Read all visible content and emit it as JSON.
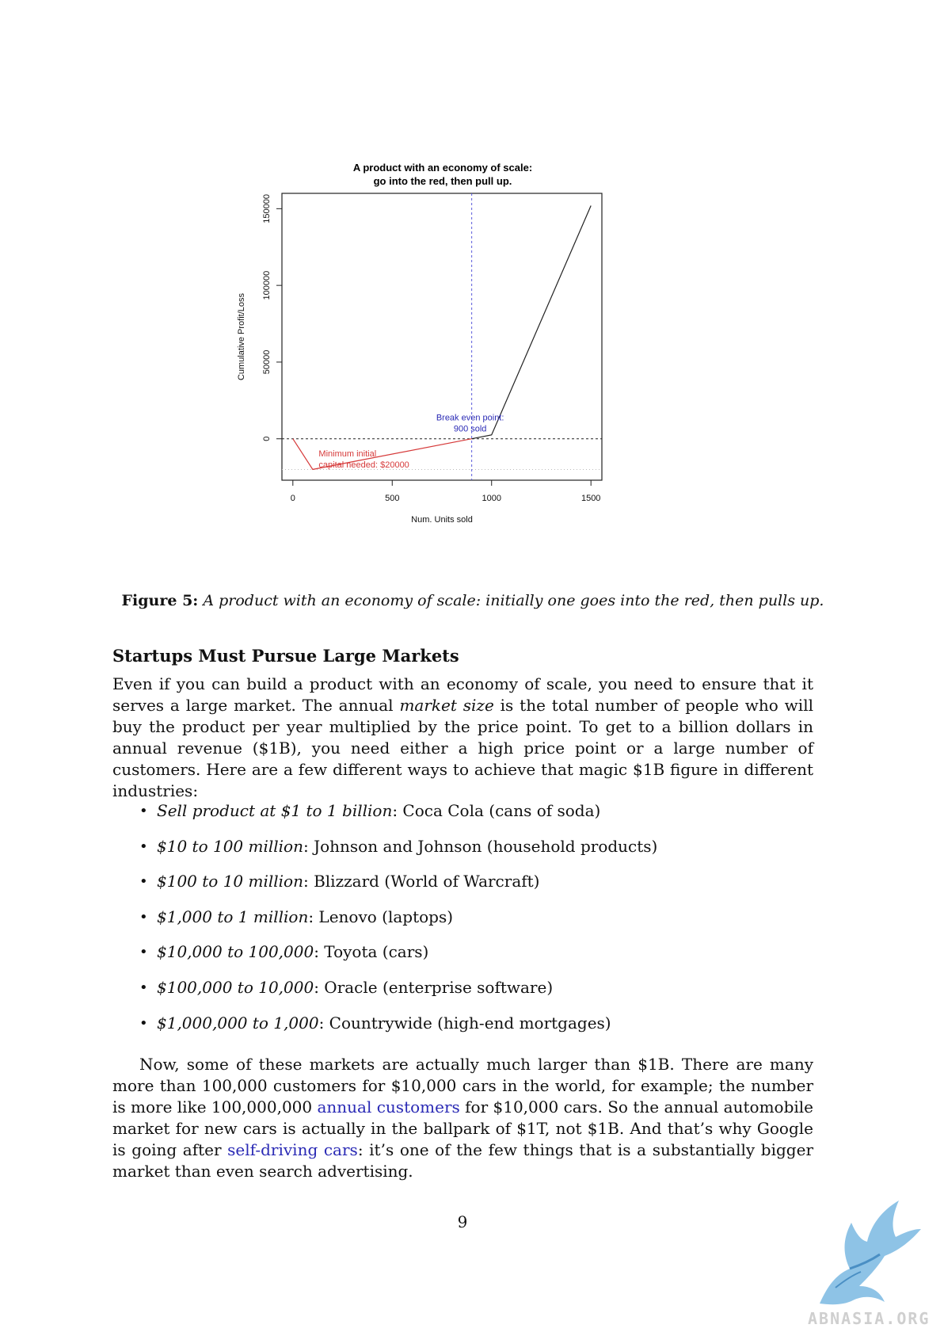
{
  "chart_data": {
    "type": "line",
    "title": "A product with an economy of scale:\ngo into the red, then pull up.",
    "xlabel": "Num. Units sold",
    "ylabel": "Cumulative Profit/Loss",
    "xlim": [
      -55,
      1555
    ],
    "ylim": [
      -27000,
      160000
    ],
    "x_ticks": [
      0,
      500,
      1000,
      1500
    ],
    "y_ticks": [
      0,
      50000,
      100000,
      150000
    ],
    "x_tick_labels": [
      "0",
      "500",
      "1000",
      "1500"
    ],
    "y_tick_labels": [
      "0",
      "50000",
      "100000",
      "150000"
    ],
    "series": [
      {
        "color": "#d63a3a",
        "x": [
          0,
          100,
          900
        ],
        "y": [
          0,
          -20000,
          0
        ]
      },
      {
        "color": "#222222",
        "x": [
          900,
          1000,
          1500
        ],
        "y": [
          0,
          2500,
          152000
        ]
      }
    ],
    "hline": {
      "y": 0,
      "style": "dashed",
      "color": "#222222"
    },
    "hline_min": {
      "y": -20000,
      "style": "dotted",
      "color": "#bbbbbb"
    },
    "vline": {
      "x": 900,
      "style": "dashed",
      "color": "#5b5bdc"
    },
    "annotations": [
      {
        "id": "min-capital",
        "lines": [
          "Minimum initial",
          "capital needed: $20000"
        ],
        "color": "#d63a3a"
      },
      {
        "id": "break-even",
        "lines": [
          "Break even point:",
          "900 sold"
        ],
        "color": "#2a2ab5"
      }
    ]
  },
  "caption": {
    "label": "Figure 5:",
    "text": "A product with an economy of scale: initially one goes into the red, then pulls up."
  },
  "section": {
    "title": "Startups Must Pursue Large Markets"
  },
  "intro": {
    "part1": "Even if you can build a product with an economy of scale, you need to ensure that it serves a large market. The annual ",
    "em": "market size",
    "part2": " is the total number of people who will buy the product per year multiplied by the price point. To get to a billion dollars in annual revenue ($1B), you need either a high price point or a large number of customers. Here are a few different ways to achieve that magic $1B figure in different industries:"
  },
  "bullets": [
    {
      "em": "Sell product at $1 to 1 billion",
      "text": ": Coca Cola (cans of soda)"
    },
    {
      "em": "$10 to 100 million",
      "text": ": Johnson and Johnson (household products)"
    },
    {
      "em": "$100 to 10 million",
      "text": ": Blizzard (World of Warcraft)"
    },
    {
      "em": "$1,000 to 1 million",
      "text": ": Lenovo (laptops)"
    },
    {
      "em": "$10,000 to 100,000",
      "text": ": Toyota (cars)"
    },
    {
      "em": "$100,000 to 10,000",
      "text": ": Oracle (enterprise software)"
    },
    {
      "em": "$1,000,000 to 1,000",
      "text": ": Countrywide (high-end mortgages)"
    }
  ],
  "closing": {
    "part1": "Now, some of these markets are actually much larger than $1B. There are many more than 100,000 customers for $10,000 cars in the world, for example; the number is more like 100,000,000 ",
    "link1": "annual customers",
    "part2": " for $10,000 cars. So the annual automobile market for new cars is actually in the ballpark of $1T, not $1B. And that’s why Google is going after ",
    "link2": "self-driving cars",
    "part3": ": it’s one of the few things that is a substantially bigger market than even search advertising."
  },
  "page_number": "9",
  "watermark": {
    "text": "ABNASIA.ORG",
    "logo": "griffin-logo-icon"
  }
}
